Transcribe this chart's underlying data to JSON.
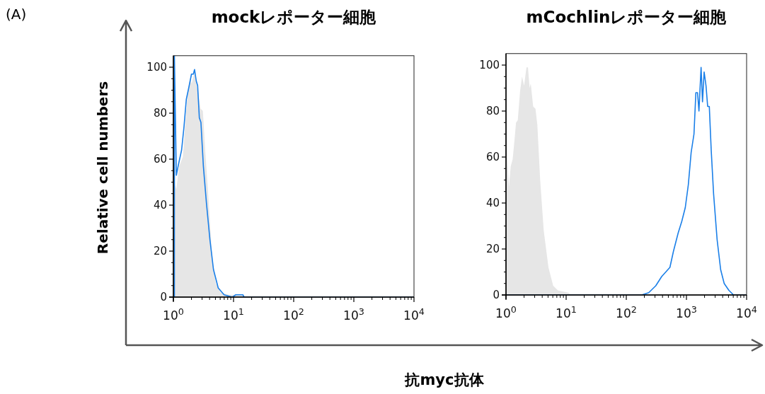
{
  "chart_data": [
    {
      "type": "line",
      "title": "mockレポーター細胞",
      "ylabel": "Relative cell numbers",
      "xlabel": "抗myc抗体",
      "annotations": [
        "(A)"
      ],
      "log": "x",
      "marker": "none",
      "line_style": "solid",
      "xlim": [
        1,
        10000
      ],
      "xticks": [
        {
          "value": 1,
          "label": "10$^{0}$"
        },
        {
          "value": 10,
          "label": "10$^{1}$"
        },
        {
          "value": 100,
          "label": "10$^{2}$"
        },
        {
          "value": 1000,
          "label": "10$^{3}$"
        },
        {
          "value": 10000,
          "label": "10$^{4}$"
        }
      ],
      "ylim": [
        0,
        105
      ],
      "yticks": [
        0,
        20,
        40,
        60,
        80,
        100
      ],
      "series": [
        {
          "type": "area",
          "color": "#e6e6e6",
          "x": [
            1.0,
            1.0,
            1.05,
            1.12,
            1.25,
            1.44,
            1.57,
            1.72,
            1.88,
            2.02,
            2.25,
            2.47,
            2.58,
            2.83,
            3.09,
            3.38,
            3.7,
            4.05,
            4.44,
            5.08,
            6.09,
            8.35,
            10.9,
            14.3,
            15.0,
            10000
          ],
          "values": [
            0,
            49,
            49,
            47,
            57,
            61,
            75,
            88,
            95,
            93,
            98,
            91,
            89,
            82,
            81,
            64,
            49,
            33,
            16,
            6,
            2,
            1,
            1,
            1,
            0,
            0
          ]
        },
        {
          "type": "line",
          "color": "#1a7fe8",
          "x": [
            1.04,
            1.04,
            1.12,
            1.2,
            1.37,
            1.5,
            1.64,
            1.8,
            2.0,
            2.15,
            2.25,
            2.4,
            2.53,
            2.7,
            2.87,
            3.15,
            3.54,
            4.05,
            4.64,
            5.56,
            6.97,
            9.55,
            10.9,
            14.3,
            15.0,
            10000
          ],
          "values": [
            0,
            105,
            53,
            57,
            64,
            74,
            86,
            91,
            97,
            97,
            99,
            94,
            92,
            78,
            76,
            57,
            41,
            25,
            12,
            4,
            1,
            0,
            1,
            1,
            0,
            0
          ]
        }
      ]
    },
    {
      "type": "line",
      "title": "mCochlinレポーター細胞",
      "log": "x",
      "marker": "none",
      "line_style": "solid",
      "xlim": [
        1,
        10000
      ],
      "xticks": [
        {
          "value": 1,
          "label": "10$^{0}$"
        },
        {
          "value": 10,
          "label": "10$^{1}$"
        },
        {
          "value": 100,
          "label": "10$^{2}$"
        },
        {
          "value": 1000,
          "label": "10$^{3}$"
        },
        {
          "value": 10000,
          "label": "10$^{4}$"
        }
      ],
      "ylim": [
        0,
        105
      ],
      "yticks": [
        0,
        20,
        40,
        60,
        80,
        100
      ],
      "series": [
        {
          "type": "area",
          "color": "#e6e6e6",
          "x": [
            1.0,
            1.0,
            1.05,
            1.12,
            1.2,
            1.29,
            1.37,
            1.47,
            1.57,
            1.72,
            1.85,
            2.0,
            2.19,
            2.32,
            2.47,
            2.58,
            2.83,
            3.09,
            3.32,
            3.7,
            4.24,
            5.08,
            6.09,
            7.29,
            10.9,
            12.0,
            10000
          ],
          "values": [
            0,
            104,
            60,
            47,
            56,
            59,
            66,
            75,
            76,
            89,
            95,
            91,
            99,
            99,
            90,
            92,
            82,
            81,
            74,
            50,
            28,
            12,
            4,
            2,
            1,
            0,
            0
          ]
        },
        {
          "type": "line",
          "color": "#1a7fe8",
          "x": [
            1.0,
            180,
            236,
            309,
            387,
            531,
            608,
            729,
            836,
            956,
            1075,
            1197,
            1334,
            1434,
            1528,
            1614,
            1751,
            1849,
            1968,
            2115,
            2253,
            2399,
            2580,
            2826,
            3236,
            3705,
            4240,
            5080,
            6080,
            10000
          ],
          "values": [
            0,
            0,
            1,
            4,
            8,
            12,
            19,
            27,
            32,
            38,
            48,
            62,
            70,
            88,
            88,
            80,
            99,
            84,
            97,
            91,
            82,
            82,
            63,
            44,
            24,
            11,
            5,
            2,
            0,
            0
          ]
        }
      ]
    }
  ]
}
